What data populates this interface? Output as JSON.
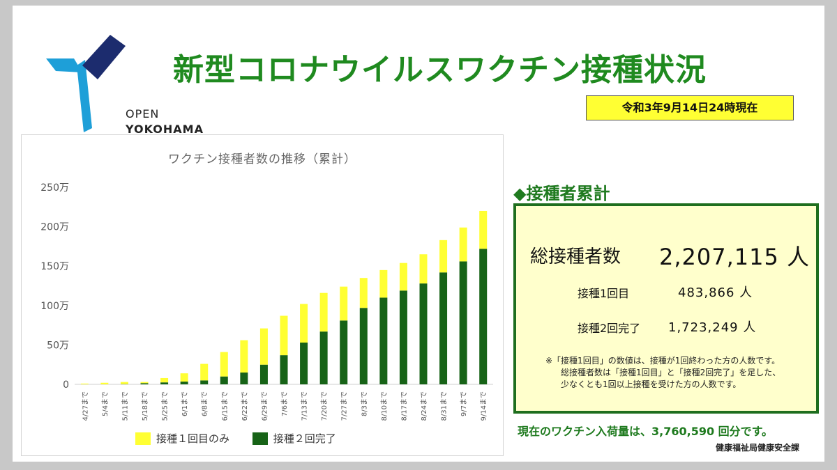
{
  "colors": {
    "first_dose": "#ffff33",
    "second_dose": "#176317",
    "title": "#1f8a1f",
    "logo_blue": "#1e9fd8",
    "logo_navy": "#1c2c6e"
  },
  "logo": {
    "line1": "OPEN",
    "line2": "YOKOHAMA"
  },
  "title": "新型コロナウイルスワクチン接種状況",
  "date": "令和3年9月14日24時現在",
  "chart_data": {
    "type": "bar",
    "stacked": true,
    "title": "ワクチン接種者数の推移（累計）",
    "categories": [
      "4/27まで",
      "5/4まで",
      "5/11まで",
      "5/18まで",
      "5/25まで",
      "6/1まで",
      "6/8まで",
      "6/15まで",
      "6/22まで",
      "6/29まで",
      "7/6まで",
      "7/13まで",
      "7/20まで",
      "7/27まで",
      "8/3まで",
      "8/10まで",
      "8/17まで",
      "8/24まで",
      "8/31まで",
      "9/7まで",
      "9/14まで"
    ],
    "series": [
      {
        "name": "接種２回完了",
        "values": [
          0,
          0,
          0.3,
          1.5,
          2.5,
          3.5,
          5,
          10,
          15,
          25,
          37,
          53,
          67,
          81,
          97,
          110,
          119,
          128,
          142,
          156,
          172
        ]
      },
      {
        "name": "接種１回目のみ",
        "values": [
          1,
          2,
          2.7,
          1.5,
          5.5,
          10.5,
          21,
          31,
          41,
          46,
          50,
          49,
          49,
          43,
          38,
          35,
          35,
          37,
          41,
          43,
          48
        ]
      }
    ],
    "ylim": [
      0,
      250
    ],
    "yticks": [
      0,
      50,
      100,
      150,
      200,
      250
    ],
    "ytick_labels": [
      "0",
      "50万",
      "100万",
      "150万",
      "200万",
      "250万"
    ],
    "legend": [
      "接種１回目のみ",
      "接種２回完了"
    ],
    "legend_position": "bottom"
  },
  "summary": {
    "heading": "◆接種者累計",
    "total_label": "総接種者数",
    "total_value": "2,207,115 人",
    "first_label": "接種1回目",
    "first_value": "483,866 人",
    "second_label": "接種2回完了",
    "second_value": "1,723,249 人",
    "note_line1": "※「接種1回目」の数値は、接種が1回終わった方の人数です。",
    "note_line2": "総接種者数は「接種1回目」と「接種2回完了」を足した、",
    "note_line3": "少なくとも1回以上接種を受けた方の人数です。"
  },
  "stock_text": "現在のワクチン入荷量は、3,760,590 回分です。",
  "department": "健康福祉局健康安全課"
}
